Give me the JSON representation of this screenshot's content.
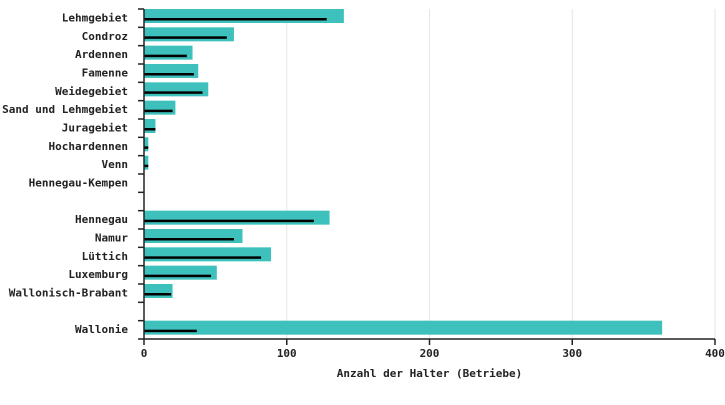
{
  "chart_data": {
    "type": "barh",
    "categories": [
      "Lehmgebiet",
      "Condroz",
      "Ardennen",
      "Famenne",
      "Weidegebiet",
      "Sand und Lehmgebiet",
      "Juragebiet",
      "Hochardennen",
      "Venn",
      "Hennegau-Kempen",
      null,
      "Hennegau",
      "Namur",
      "Lüttich",
      "Luxemburg",
      "Wallonisch-Brabant",
      null,
      "Wallonie"
    ],
    "series": [
      {
        "color": "#3ec1bd",
        "values": [
          140,
          63,
          34,
          38,
          45,
          22,
          8,
          3,
          3,
          0,
          null,
          130,
          69,
          89,
          51,
          20,
          null,
          363
        ]
      },
      {
        "color": "#000000",
        "values": [
          128,
          58,
          30,
          35,
          41,
          20,
          8,
          3,
          3,
          0,
          null,
          119,
          63,
          82,
          47,
          19,
          null,
          37
        ]
      }
    ],
    "xlabel": "Anzahl der Halter (Betriebe)",
    "xlim": [
      0,
      400
    ],
    "xticks": [
      0,
      100,
      200,
      300,
      400
    ],
    "grid": true
  }
}
